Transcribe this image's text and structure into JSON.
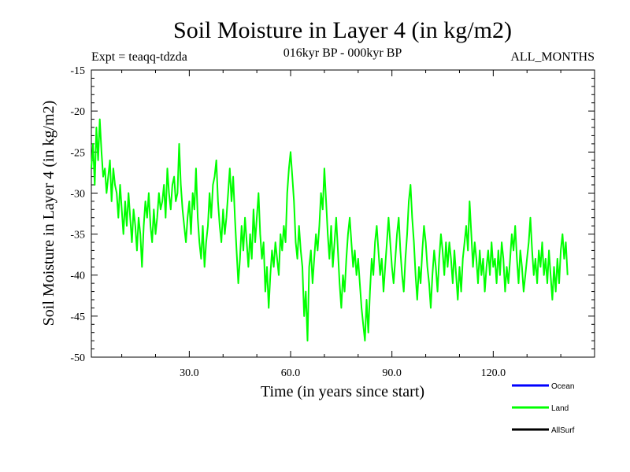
{
  "chart_data": {
    "type": "line",
    "title": "Soil Moisture in Layer 4 (in kg/m2)",
    "subtitle_left": "Expt = teaqq-tdzda",
    "subtitle_center": "016kyr BP - 000kyr BP",
    "subtitle_right": "ALL_MONTHS",
    "xlabel": "Time (in years since start)",
    "ylabel": "Soil Moisture in Layer 4 (in kg/m2)",
    "xlim": [
      1,
      150
    ],
    "ylim": [
      -50,
      -15
    ],
    "xticks": [
      30,
      60,
      90,
      120
    ],
    "xtick_labels": [
      "30.0",
      "60.0",
      "90.0",
      "120.0"
    ],
    "yticks": [
      -15,
      -20,
      -25,
      -30,
      -35,
      -40,
      -45,
      -50
    ],
    "ytick_labels": [
      "-15",
      "-20",
      "-25",
      "-30",
      "-35",
      "-40",
      "-45",
      "-50"
    ],
    "legend": [
      {
        "name": "Ocean",
        "color": "#0000ff"
      },
      {
        "name": "Land",
        "color": "#00ff00"
      },
      {
        "name": "AllSurf",
        "color": "#000000"
      }
    ],
    "series": [
      {
        "name": "Land",
        "color": "#00ff00",
        "x_start": 1,
        "x_step": 0.5,
        "values": [
          -27,
          -24,
          -29,
          -22,
          -26,
          -21,
          -25,
          -28,
          -27,
          -30,
          -28,
          -26,
          -31,
          -27,
          -29,
          -30,
          -33,
          -29,
          -32,
          -35,
          -31,
          -34,
          -30,
          -33,
          -36,
          -32,
          -34,
          -37,
          -33,
          -35,
          -39,
          -34,
          -31,
          -33,
          -30,
          -34,
          -36,
          -32,
          -35,
          -33,
          -30,
          -32,
          -31,
          -29,
          -33,
          -27,
          -30,
          -32,
          -29,
          -28,
          -31,
          -30,
          -24,
          -29,
          -32,
          -34,
          -36,
          -33,
          -31,
          -35,
          -30,
          -32,
          -27,
          -33,
          -36,
          -38,
          -34,
          -39,
          -36,
          -34,
          -30,
          -33,
          -29,
          -28,
          -26,
          -31,
          -34,
          -36,
          -32,
          -35,
          -33,
          -30,
          -27,
          -31,
          -28,
          -33,
          -37,
          -41,
          -38,
          -34,
          -37,
          -33,
          -36,
          -39,
          -35,
          -38,
          -32,
          -36,
          -33,
          -30,
          -35,
          -38,
          -36,
          -42,
          -39,
          -44,
          -40,
          -37,
          -39,
          -36,
          -38,
          -40,
          -35,
          -37,
          -34,
          -36,
          -30,
          -27,
          -25,
          -28,
          -31,
          -36,
          -38,
          -34,
          -37,
          -39,
          -45,
          -42,
          -48,
          -39,
          -37,
          -41,
          -38,
          -35,
          -37,
          -34,
          -30,
          -32,
          -27,
          -31,
          -35,
          -38,
          -34,
          -39,
          -36,
          -33,
          -37,
          -41,
          -44,
          -40,
          -42,
          -38,
          -35,
          -33,
          -36,
          -39,
          -37,
          -40,
          -38,
          -41,
          -44,
          -46,
          -48,
          -43,
          -47,
          -42,
          -38,
          -40,
          -36,
          -34,
          -37,
          -40,
          -38,
          -42,
          -39,
          -36,
          -33,
          -36,
          -39,
          -41,
          -38,
          -35,
          -33,
          -37,
          -40,
          -42,
          -38,
          -35,
          -31,
          -29,
          -33,
          -36,
          -40,
          -43,
          -39,
          -41,
          -37,
          -34,
          -36,
          -39,
          -41,
          -44,
          -40,
          -37,
          -39,
          -42,
          -38,
          -35,
          -37,
          -40,
          -36,
          -39,
          -36,
          -38,
          -41,
          -37,
          -40,
          -43,
          -39,
          -42,
          -38,
          -36,
          -34,
          -37,
          -31,
          -35,
          -39,
          -36,
          -38,
          -41,
          -37,
          -40,
          -38,
          -42,
          -39,
          -37,
          -40,
          -36,
          -39,
          -38,
          -41,
          -37,
          -40,
          -36,
          -38,
          -42,
          -39,
          -41,
          -38,
          -35,
          -37,
          -34,
          -38,
          -41,
          -37,
          -39,
          -42,
          -40,
          -38,
          -36,
          -33,
          -37,
          -40,
          -38,
          -41,
          -37,
          -39,
          -36,
          -40,
          -38,
          -41,
          -37,
          -40,
          -43,
          -39,
          -42,
          -38,
          -41,
          -37,
          -35,
          -38,
          -36,
          -40
        ]
      }
    ]
  }
}
